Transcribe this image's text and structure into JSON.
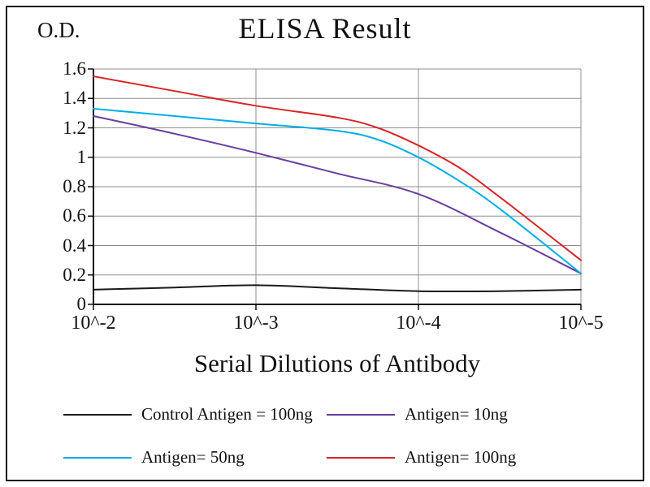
{
  "chart_data": {
    "type": "line",
    "title": "ELISA Result",
    "xlabel": "Serial Dilutions of Antibody",
    "ylabel": "O.D.",
    "xtick_labels": [
      "10^-2",
      "10^-3",
      "10^-4",
      "10^-5"
    ],
    "ytick_labels": [
      "0",
      "0.2",
      "0.4",
      "0.6",
      "0.8",
      "1",
      "1.2",
      "1.4",
      "1.6"
    ],
    "ylim": [
      0,
      1.6
    ],
    "grid": true,
    "legend_position": "bottom",
    "axis_color": "#111111",
    "grid_color": "#8f8f8f",
    "series": [
      {
        "name": "Control Antigen = 100ng",
        "color": "#1a1a1a",
        "points": [
          [
            0,
            0.1
          ],
          [
            0.5,
            0.115
          ],
          [
            1,
            0.13
          ],
          [
            1.5,
            0.11
          ],
          [
            2,
            0.09
          ],
          [
            2.5,
            0.09
          ],
          [
            3,
            0.1
          ]
        ]
      },
      {
        "name": "Antigen= 10ng",
        "color": "#6a3d9e",
        "points": [
          [
            0,
            1.28
          ],
          [
            0.5,
            1.16
          ],
          [
            1,
            1.03
          ],
          [
            1.5,
            0.89
          ],
          [
            2,
            0.75
          ],
          [
            2.5,
            0.49
          ],
          [
            3,
            0.21
          ]
        ]
      },
      {
        "name": "Antigen= 50ng",
        "color": "#00aee6",
        "points": [
          [
            0,
            1.33
          ],
          [
            0.5,
            1.28
          ],
          [
            1,
            1.23
          ],
          [
            1.5,
            1.18
          ],
          [
            1.75,
            1.12
          ],
          [
            2,
            1.0
          ],
          [
            2.25,
            0.84
          ],
          [
            2.5,
            0.65
          ],
          [
            3,
            0.21
          ]
        ]
      },
      {
        "name": "Antigen= 100ng",
        "color": "#d8262a",
        "points": [
          [
            0,
            1.55
          ],
          [
            0.5,
            1.45
          ],
          [
            1,
            1.35
          ],
          [
            1.5,
            1.27
          ],
          [
            1.75,
            1.2
          ],
          [
            2,
            1.08
          ],
          [
            2.25,
            0.93
          ],
          [
            2.5,
            0.73
          ],
          [
            3,
            0.3
          ]
        ]
      }
    ]
  }
}
